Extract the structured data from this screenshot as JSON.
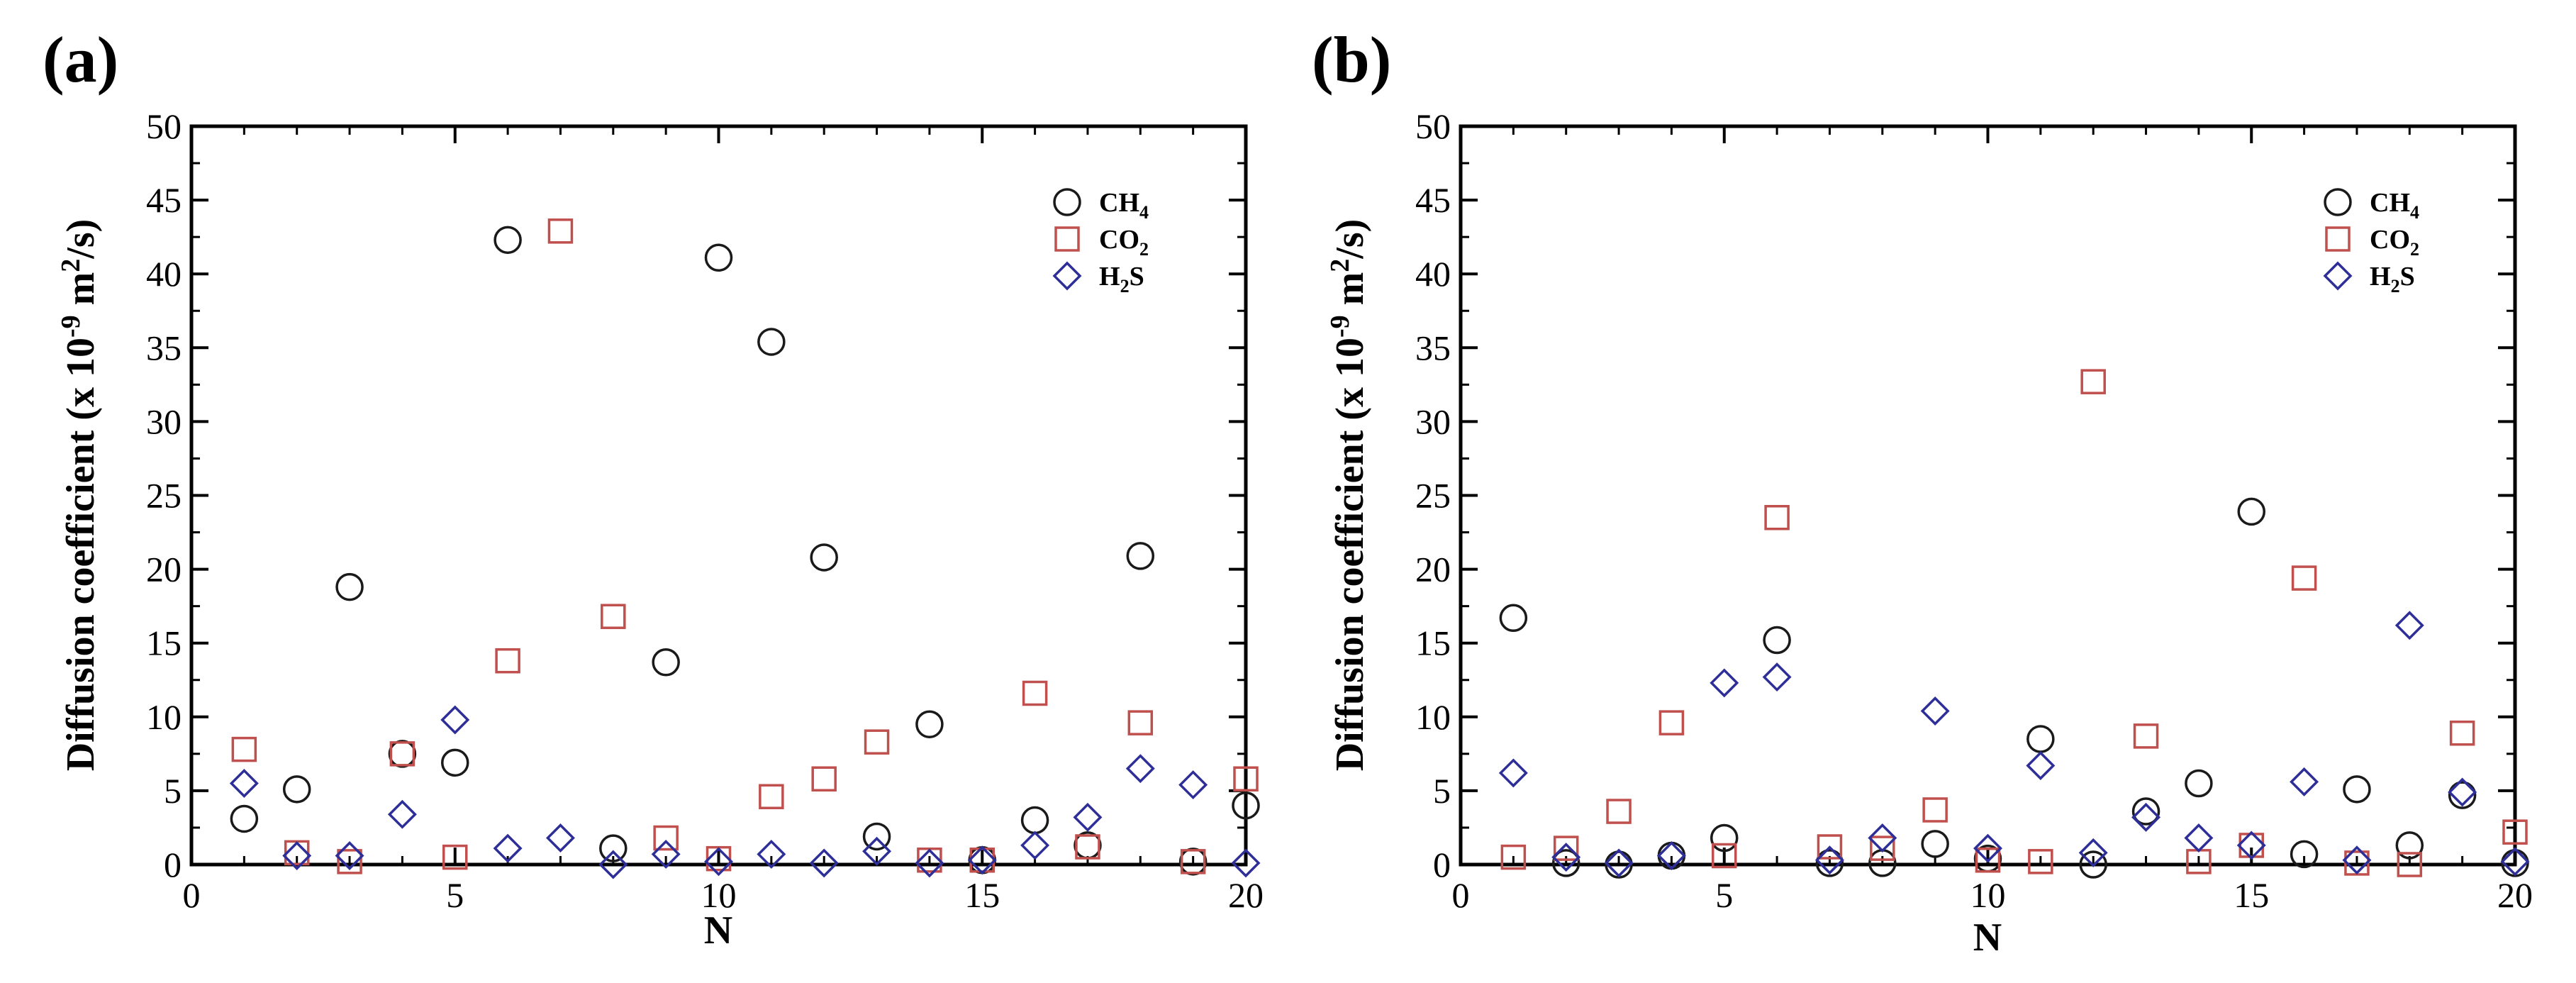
{
  "colors": {
    "CH4": "#1a1a1a",
    "CO2": "#c0504d",
    "H2S": "#2e2e99",
    "axis": "#000000"
  },
  "chart_data": [
    {
      "type": "scatter",
      "panel_label": "(a)",
      "title": "",
      "xlabel": "N",
      "ylabel_parts": {
        "pre": "Diffusion coefficient (x 10",
        "exp1": "-9",
        "mid": " m",
        "exp2": "2",
        "post": "/s)"
      },
      "xlim": [
        0,
        20
      ],
      "ylim": [
        0,
        50
      ],
      "xticks": [
        0,
        5,
        10,
        15,
        20
      ],
      "yticks": [
        0,
        5,
        10,
        15,
        20,
        25,
        30,
        35,
        40,
        45,
        50
      ],
      "x": [
        1,
        2,
        3,
        4,
        5,
        6,
        7,
        8,
        9,
        10,
        11,
        12,
        13,
        14,
        15,
        16,
        17,
        18,
        19,
        20
      ],
      "series": [
        {
          "name": "CH4",
          "legend_main": "CH",
          "legend_sub": "4",
          "marker": "circle",
          "values": [
            3.1,
            5.1,
            18.8,
            7.5,
            6.9,
            42.3,
            null,
            1.1,
            13.7,
            41.1,
            35.4,
            20.8,
            1.9,
            9.5,
            0.3,
            3.0,
            1.3,
            20.9,
            0.2,
            4.0
          ]
        },
        {
          "name": "CO2",
          "legend_main": "CO",
          "legend_sub": "2",
          "marker": "square",
          "values": [
            7.8,
            0.8,
            0.2,
            7.5,
            0.5,
            13.8,
            42.9,
            16.8,
            1.8,
            0.4,
            4.6,
            5.8,
            8.3,
            0.3,
            0.3,
            11.6,
            1.2,
            9.6,
            0.2,
            5.8
          ]
        },
        {
          "name": "H2S",
          "legend_main": "H",
          "legend_sub": "2",
          "legend_tail": "S",
          "marker": "diamond",
          "values": [
            5.5,
            0.6,
            0.6,
            3.4,
            9.8,
            1.1,
            1.8,
            0.0,
            0.7,
            0.2,
            0.7,
            0.1,
            0.9,
            0.1,
            0.3,
            1.3,
            3.2,
            6.5,
            5.4,
            0.1
          ]
        }
      ]
    },
    {
      "type": "scatter",
      "panel_label": "(b)",
      "title": "",
      "xlabel": "N",
      "ylabel_parts": {
        "pre": "Diffusion coefficient (x 10",
        "exp1": "-9",
        "mid": " m",
        "exp2": "2",
        "post": "/s)"
      },
      "xlim": [
        0,
        20
      ],
      "ylim": [
        0,
        50
      ],
      "xticks": [
        0,
        5,
        10,
        15,
        20
      ],
      "yticks": [
        0,
        5,
        10,
        15,
        20,
        25,
        30,
        35,
        40,
        45,
        50
      ],
      "x": [
        1,
        2,
        3,
        4,
        5,
        6,
        7,
        8,
        9,
        10,
        11,
        12,
        13,
        14,
        15,
        16,
        17,
        18,
        19,
        20
      ],
      "series": [
        {
          "name": "CH4",
          "legend_main": "CH",
          "legend_sub": "4",
          "marker": "circle",
          "values": [
            16.7,
            0.1,
            0.0,
            0.6,
            1.8,
            15.2,
            0.1,
            0.1,
            1.4,
            0.4,
            8.5,
            0.0,
            3.6,
            5.5,
            23.9,
            0.7,
            5.1,
            1.3,
            4.7,
            0.1
          ]
        },
        {
          "name": "CO2",
          "legend_main": "CO",
          "legend_sub": "2",
          "marker": "square",
          "values": [
            0.5,
            1.1,
            3.6,
            9.6,
            0.6,
            23.5,
            1.2,
            1.1,
            3.7,
            0.3,
            0.2,
            32.7,
            8.7,
            0.2,
            1.3,
            19.4,
            0.1,
            0.0,
            8.9,
            2.2
          ]
        },
        {
          "name": "H2S",
          "legend_main": "H",
          "legend_sub": "2",
          "legend_tail": "S",
          "marker": "diamond",
          "values": [
            6.2,
            0.5,
            0.1,
            0.6,
            12.3,
            12.7,
            0.3,
            1.8,
            10.4,
            1.1,
            6.7,
            0.8,
            3.2,
            1.8,
            1.3,
            5.6,
            0.3,
            16.2,
            4.9,
            0.2
          ]
        }
      ]
    }
  ]
}
